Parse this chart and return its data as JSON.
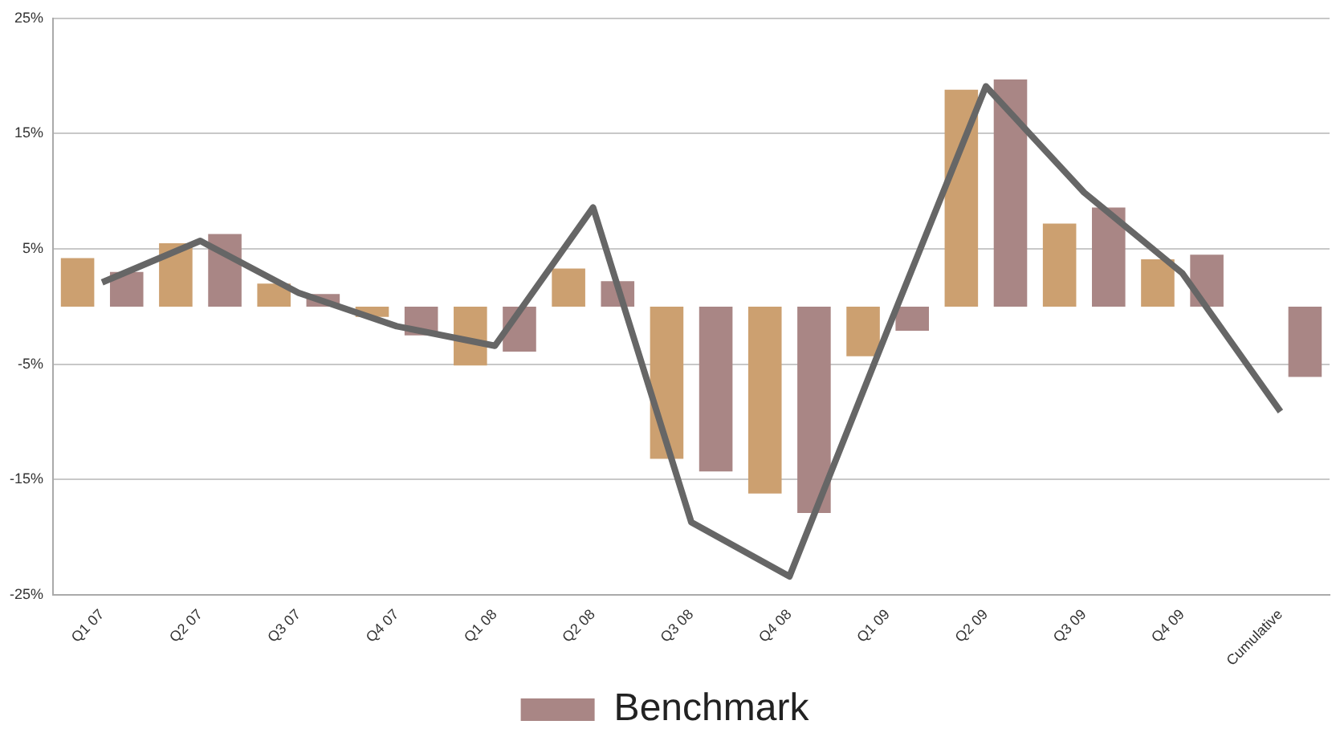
{
  "chart_data": {
    "type": "bar",
    "categories": [
      "Q1 07",
      "Q2 07",
      "Q3 07",
      "Q4 07",
      "Q1 08",
      "Q2 08",
      "Q3 08",
      "Q4 08",
      "Q1 09",
      "Q2 09",
      "Q3 09",
      "Q4 09",
      "Cumulative"
    ],
    "series": [
      {
        "color": "#cca070",
        "values": [
          4.2,
          5.5,
          2.0,
          -0.9,
          -5.1,
          3.3,
          -13.2,
          -16.2,
          -4.3,
          18.8,
          7.2,
          4.1,
          0
        ]
      },
      {
        "name": "Benchmark",
        "color": "#a98685",
        "values": [
          3.0,
          6.3,
          1.1,
          -2.5,
          -3.9,
          2.2,
          -14.3,
          -17.9,
          -2.1,
          19.7,
          8.6,
          4.5,
          -6.1
        ]
      },
      {
        "type": "line",
        "color": "#666666",
        "values": [
          2.1,
          5.7,
          1.2,
          -1.7,
          -3.4,
          8.6,
          -18.7,
          -23.4,
          -2.0,
          19.1,
          9.9,
          2.9,
          -9.1
        ]
      }
    ],
    "ylim": [
      -25,
      25
    ],
    "yticks": [
      {
        "value": -25,
        "label": "-25%"
      },
      {
        "value": -15,
        "label": "-15%"
      },
      {
        "value": -5,
        "label": "-5%"
      },
      {
        "value": 5,
        "label": "5%"
      },
      {
        "value": 15,
        "label": "15%"
      },
      {
        "value": 25,
        "label": "25%"
      }
    ],
    "grid": "y",
    "legend": "bottom",
    "marker": "none"
  }
}
